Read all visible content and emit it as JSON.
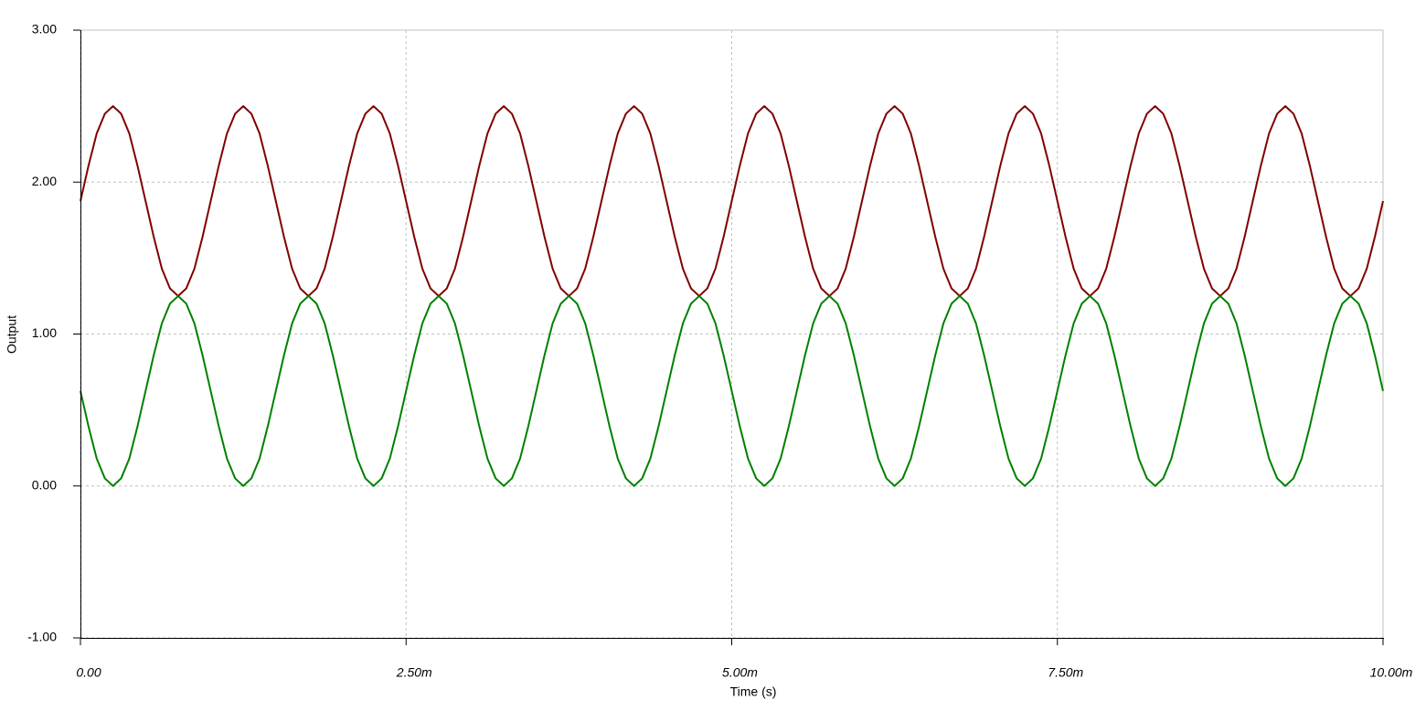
{
  "chart_data": {
    "type": "line",
    "x_label": "Time (s)",
    "y_label": "Output",
    "x": [
      0,
      6.25e-05,
      0.000125,
      0.0001875,
      0.00025,
      0.0003125,
      0.000375,
      0.0004375,
      0.0005,
      0.0005625,
      0.000625,
      0.0006875,
      0.00075,
      0.0008125,
      0.000875,
      0.0009375,
      0.001,
      0.0010625,
      0.001125,
      0.0011875,
      0.00125,
      0.0013125,
      0.001375,
      0.0014375,
      0.0015,
      0.0015625,
      0.001625,
      0.0016875,
      0.00175,
      0.0018125,
      0.001875,
      0.0019375,
      0.002,
      0.0020625,
      0.002125,
      0.0021875,
      0.00225,
      0.0023125,
      0.002375,
      0.0024375,
      0.0025,
      0.0025625,
      0.002625,
      0.0026875,
      0.00275,
      0.0028125,
      0.002875,
      0.0029375,
      0.003,
      0.0030625,
      0.003125,
      0.0031875,
      0.00325,
      0.0033125,
      0.003375,
      0.0034375,
      0.0035,
      0.0035625,
      0.003625,
      0.0036875,
      0.00375,
      0.0038125,
      0.003875,
      0.0039375,
      0.004,
      0.0040625,
      0.004125,
      0.0041875,
      0.00425,
      0.0043125,
      0.004375,
      0.0044375,
      0.0045,
      0.0045625,
      0.004625,
      0.0046875,
      0.00475,
      0.0048125,
      0.004875,
      0.0049375,
      0.005,
      0.0050625,
      0.005125,
      0.0051875,
      0.00525,
      0.0053125,
      0.005375,
      0.0054375,
      0.0055,
      0.0055625,
      0.005625,
      0.0056875,
      0.00575,
      0.0058125,
      0.005875,
      0.0059375,
      0.006,
      0.0060625,
      0.006125,
      0.0061875,
      0.00625,
      0.0063125,
      0.006375,
      0.0064375,
      0.0065,
      0.0065625,
      0.006625,
      0.0066875,
      0.00675,
      0.0068125,
      0.006875,
      0.0069375,
      0.007,
      0.0070625,
      0.007125,
      0.0071875,
      0.00725,
      0.0073125,
      0.007375,
      0.0074375,
      0.0075,
      0.0075625,
      0.007625,
      0.0076875,
      0.00775,
      0.0078125,
      0.007875,
      0.0079375,
      0.008,
      0.0080625,
      0.008125,
      0.0081875,
      0.00825,
      0.0083125,
      0.008375,
      0.0084375,
      0.0085,
      0.0085625,
      0.008625,
      0.0086875,
      0.00875,
      0.0088125,
      0.008875,
      0.0089375,
      0.009,
      0.0090625,
      0.009125,
      0.0091875,
      0.00925,
      0.0093125,
      0.009375,
      0.0094375,
      0.0095,
      0.0095625,
      0.009625,
      0.0096875,
      0.00975,
      0.0098125,
      0.009875,
      0.0099375,
      0.01
    ],
    "series": [
      {
        "color": "#800000",
        "values": [
          1.875,
          2.11,
          2.32,
          2.45,
          2.5,
          2.45,
          2.32,
          2.11,
          1.875,
          1.64,
          1.43,
          1.3,
          1.25,
          1.3,
          1.43,
          1.64,
          1.875,
          2.11,
          2.32,
          2.45,
          2.5,
          2.45,
          2.32,
          2.11,
          1.875,
          1.64,
          1.43,
          1.3,
          1.25,
          1.3,
          1.43,
          1.64,
          1.875,
          2.11,
          2.32,
          2.45,
          2.5,
          2.45,
          2.32,
          2.11,
          1.875,
          1.64,
          1.43,
          1.3,
          1.25,
          1.3,
          1.43,
          1.64,
          1.875,
          2.11,
          2.32,
          2.45,
          2.5,
          2.45,
          2.32,
          2.11,
          1.875,
          1.64,
          1.43,
          1.3,
          1.25,
          1.3,
          1.43,
          1.64,
          1.875,
          2.11,
          2.32,
          2.45,
          2.5,
          2.45,
          2.32,
          2.11,
          1.875,
          1.64,
          1.43,
          1.3,
          1.25,
          1.3,
          1.43,
          1.64,
          1.875,
          2.11,
          2.32,
          2.45,
          2.5,
          2.45,
          2.32,
          2.11,
          1.875,
          1.64,
          1.43,
          1.3,
          1.25,
          1.3,
          1.43,
          1.64,
          1.875,
          2.11,
          2.32,
          2.45,
          2.5,
          2.45,
          2.32,
          2.11,
          1.875,
          1.64,
          1.43,
          1.3,
          1.25,
          1.3,
          1.43,
          1.64,
          1.875,
          2.11,
          2.32,
          2.45,
          2.5,
          2.45,
          2.32,
          2.11,
          1.875,
          1.64,
          1.43,
          1.3,
          1.25,
          1.3,
          1.43,
          1.64,
          1.875,
          2.11,
          2.32,
          2.45,
          2.5,
          2.45,
          2.32,
          2.11,
          1.875,
          1.64,
          1.43,
          1.3,
          1.25,
          1.3,
          1.43,
          1.64,
          1.875,
          2.11,
          2.32,
          2.45,
          2.5,
          2.45,
          2.32,
          2.11,
          1.875,
          1.64,
          1.43,
          1.3,
          1.25,
          1.3,
          1.43,
          1.64,
          1.875
        ]
      },
      {
        "color": "#008000",
        "values": [
          0.625,
          0.39,
          0.18,
          0.05,
          0,
          0.05,
          0.18,
          0.39,
          0.625,
          0.86,
          1.07,
          1.2,
          1.25,
          1.2,
          1.07,
          0.86,
          0.625,
          0.39,
          0.18,
          0.05,
          0,
          0.05,
          0.18,
          0.39,
          0.625,
          0.86,
          1.07,
          1.2,
          1.25,
          1.2,
          1.07,
          0.86,
          0.625,
          0.39,
          0.18,
          0.05,
          0,
          0.05,
          0.18,
          0.39,
          0.625,
          0.86,
          1.07,
          1.2,
          1.25,
          1.2,
          1.07,
          0.86,
          0.625,
          0.39,
          0.18,
          0.05,
          0,
          0.05,
          0.18,
          0.39,
          0.625,
          0.86,
          1.07,
          1.2,
          1.25,
          1.2,
          1.07,
          0.86,
          0.625,
          0.39,
          0.18,
          0.05,
          0,
          0.05,
          0.18,
          0.39,
          0.625,
          0.86,
          1.07,
          1.2,
          1.25,
          1.2,
          1.07,
          0.86,
          0.625,
          0.39,
          0.18,
          0.05,
          0,
          0.05,
          0.18,
          0.39,
          0.625,
          0.86,
          1.07,
          1.2,
          1.25,
          1.2,
          1.07,
          0.86,
          0.625,
          0.39,
          0.18,
          0.05,
          0,
          0.05,
          0.18,
          0.39,
          0.625,
          0.86,
          1.07,
          1.2,
          1.25,
          1.2,
          1.07,
          0.86,
          0.625,
          0.39,
          0.18,
          0.05,
          0,
          0.05,
          0.18,
          0.39,
          0.625,
          0.86,
          1.07,
          1.2,
          1.25,
          1.2,
          1.07,
          0.86,
          0.625,
          0.39,
          0.18,
          0.05,
          0,
          0.05,
          0.18,
          0.39,
          0.625,
          0.86,
          1.07,
          1.2,
          1.25,
          1.2,
          1.07,
          0.86,
          0.625,
          0.39,
          0.18,
          0.05,
          0,
          0.05,
          0.18,
          0.39,
          0.625,
          0.86,
          1.07,
          1.2,
          1.25,
          1.2,
          1.07,
          0.86,
          0.625
        ]
      }
    ],
    "xlim": [
      0,
      0.01
    ],
    "xticks": [
      {
        "value": 0,
        "label": "0.00"
      },
      {
        "value": 0.0025,
        "label": "2.50m"
      },
      {
        "value": 0.005,
        "label": "5.00m"
      },
      {
        "value": 0.0075,
        "label": "7.50m"
      },
      {
        "value": 0.01,
        "label": "10.00m"
      }
    ],
    "ylim": [
      -1,
      3
    ],
    "yticks": [
      {
        "value": -1,
        "label": "-1.00"
      },
      {
        "value": 0,
        "label": "0.00"
      },
      {
        "value": 1,
        "label": "1.00"
      },
      {
        "value": 2,
        "label": "2.00"
      },
      {
        "value": 3,
        "label": "3.00"
      }
    ],
    "grid": true
  }
}
